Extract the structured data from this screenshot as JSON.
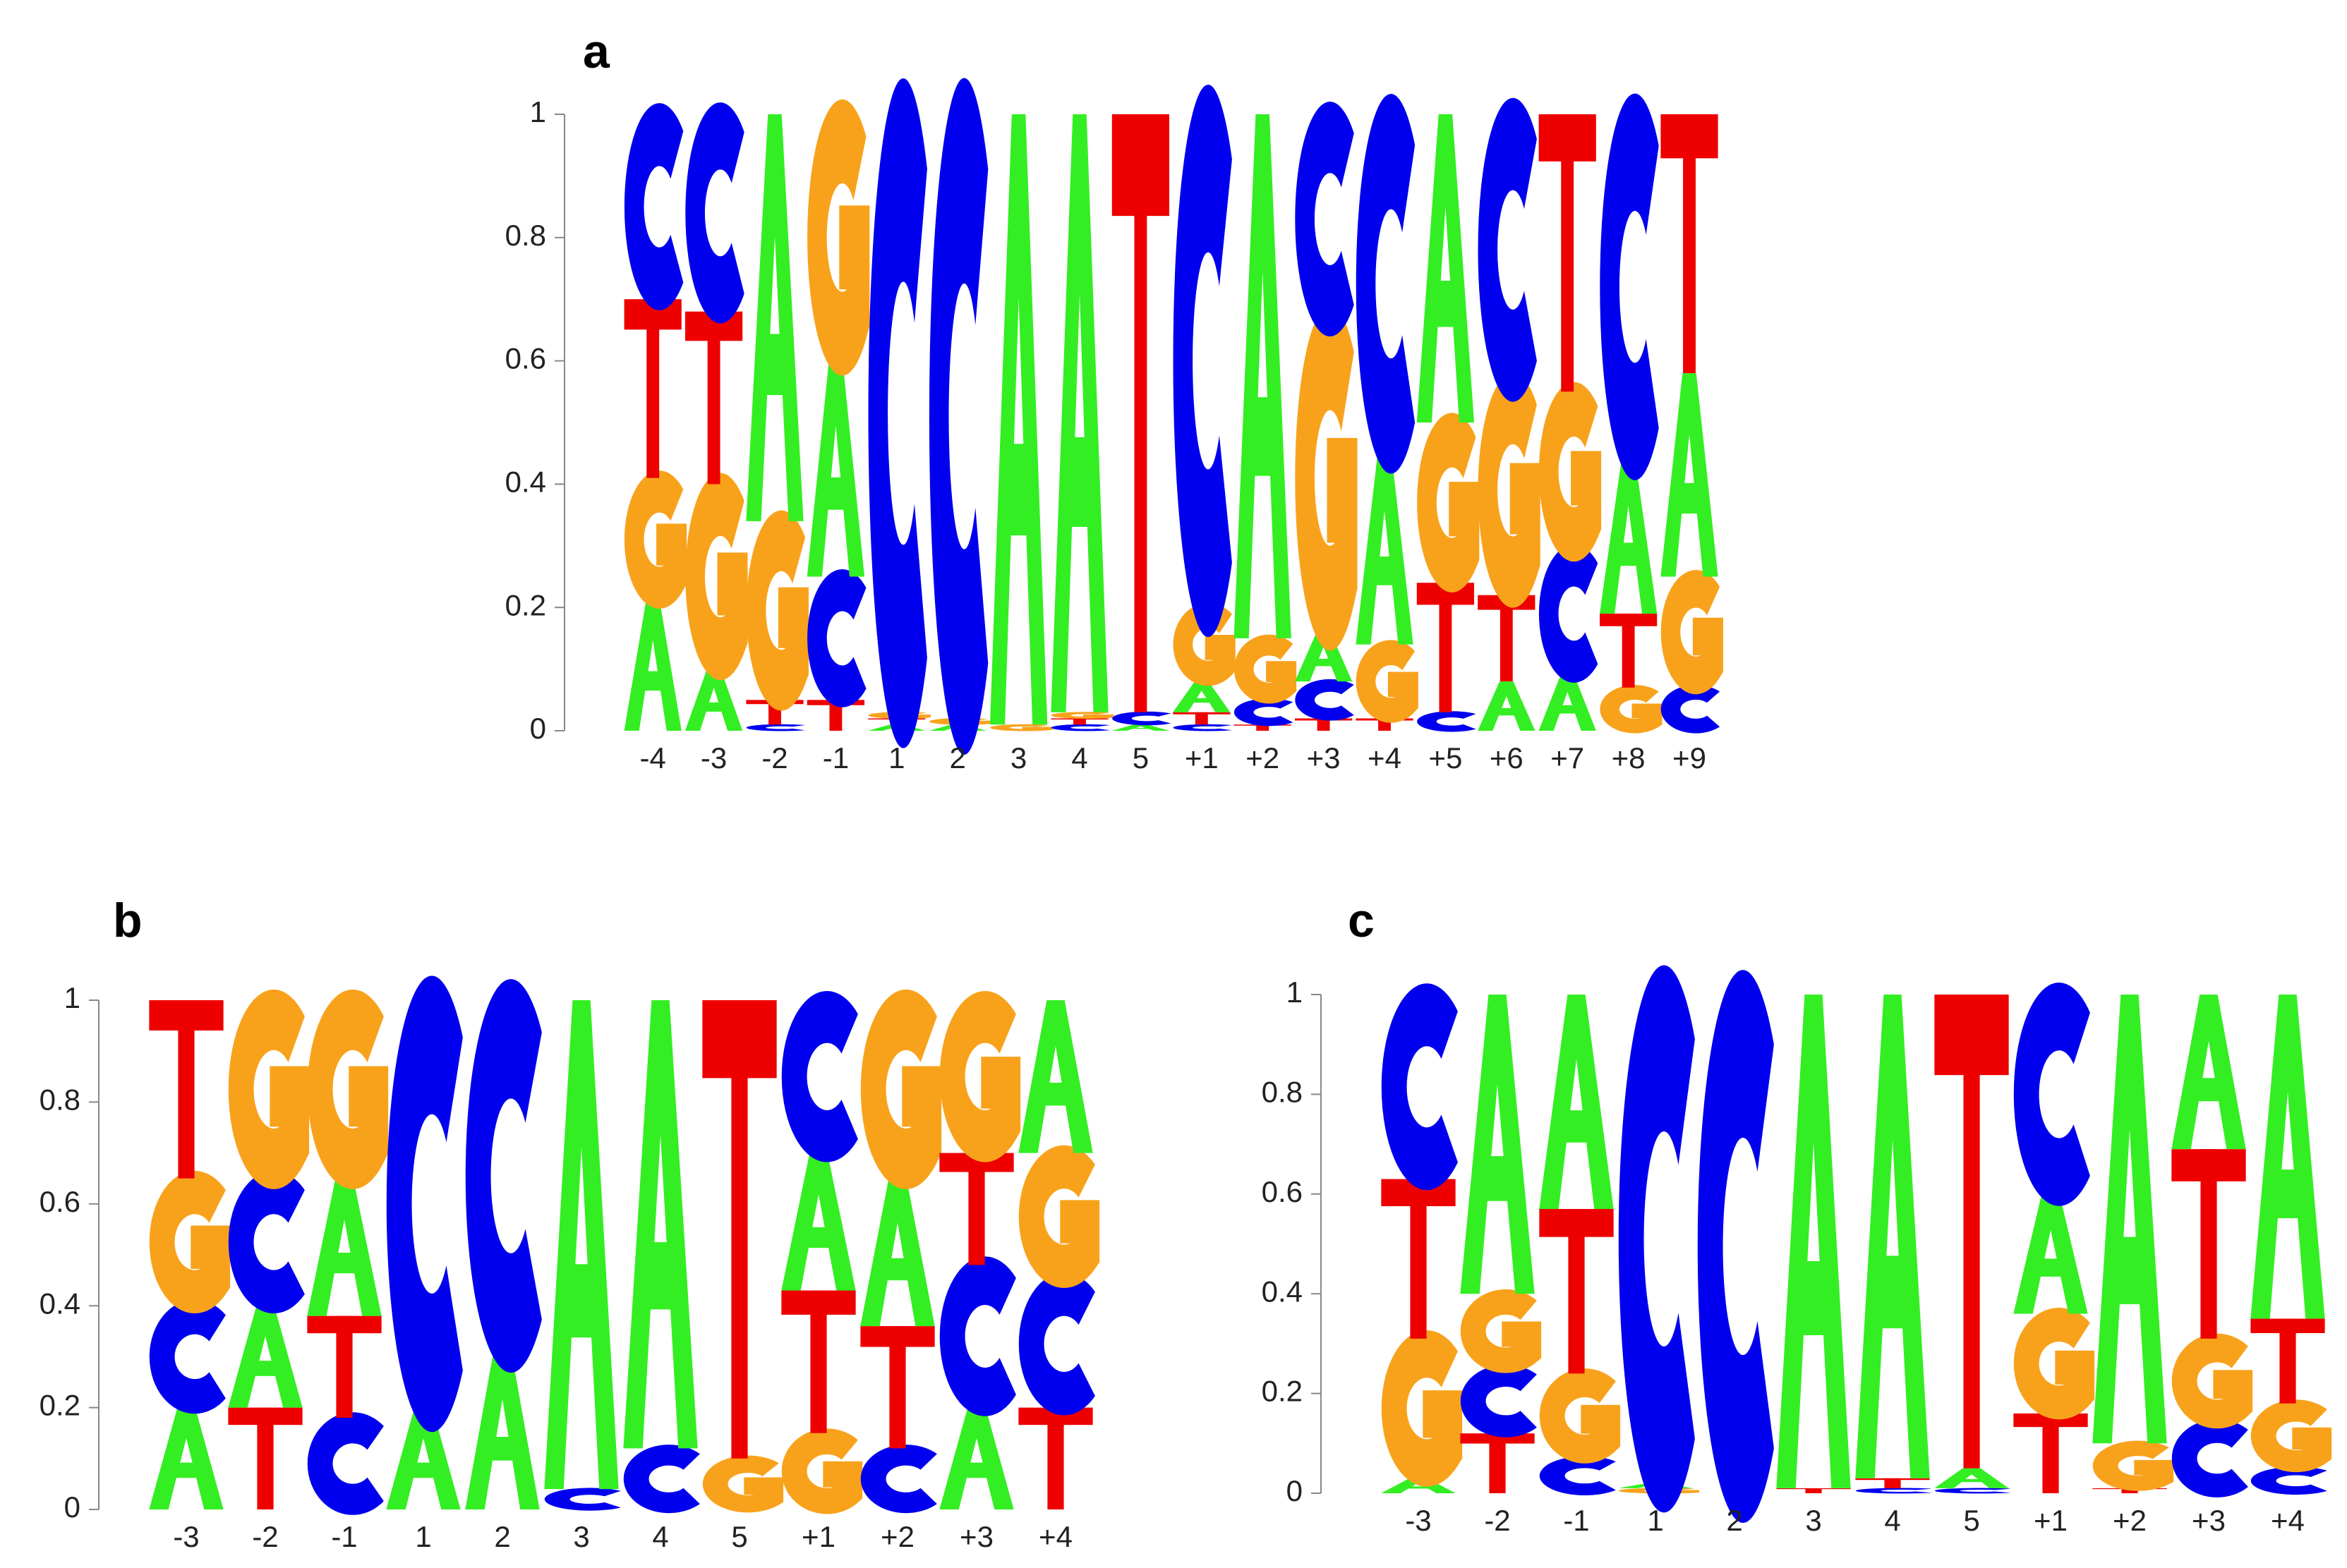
{
  "colors": {
    "A": "#33ee22",
    "C": "#0000ee",
    "G": "#f8a21c",
    "T": "#ee0000"
  },
  "chart_data": [
    {
      "type": "sequence-logo",
      "panel_label": "a",
      "ylim": [
        0,
        1
      ],
      "yticks": [
        "0",
        "0.2",
        "0.4",
        "0.6",
        "0.8",
        "1"
      ],
      "positions": [
        "-4",
        "-3",
        "-2",
        "-1",
        "1",
        "2",
        "3",
        "4",
        "5",
        "+1",
        "+2",
        "+3",
        "+4",
        "+5",
        "+6",
        "+7",
        "+8",
        "+9"
      ],
      "stacks": [
        [
          [
            "A",
            0.21
          ],
          [
            "G",
            0.2
          ],
          [
            "T",
            0.29
          ],
          [
            "C",
            0.3
          ]
        ],
        [
          [
            "A",
            0.1
          ],
          [
            "G",
            0.3
          ],
          [
            "T",
            0.28
          ],
          [
            "C",
            0.32
          ]
        ],
        [
          [
            "C",
            0.01
          ],
          [
            "T",
            0.04
          ],
          [
            "G",
            0.29
          ],
          [
            "A",
            0.66
          ]
        ],
        [
          [
            "T",
            0.05
          ],
          [
            "C",
            0.2
          ],
          [
            "A",
            0.35
          ],
          [
            "G",
            0.4
          ]
        ],
        [
          [
            "A",
            0.01
          ],
          [
            "T",
            0.01
          ],
          [
            "G",
            0.01
          ],
          [
            "C",
            0.97
          ]
        ],
        [
          [
            "A",
            0.01
          ],
          [
            "G",
            0.01
          ],
          [
            "C",
            0.98
          ]
        ],
        [
          [
            "G",
            0.01
          ],
          [
            "A",
            0.99
          ]
        ],
        [
          [
            "C",
            0.01
          ],
          [
            "T",
            0.01
          ],
          [
            "G",
            0.01
          ],
          [
            "A",
            0.97
          ]
        ],
        [
          [
            "A",
            0.01
          ],
          [
            "C",
            0.02
          ],
          [
            "T",
            0.97
          ]
        ],
        [
          [
            "C",
            0.01
          ],
          [
            "T",
            0.02
          ],
          [
            "A",
            0.05
          ],
          [
            "G",
            0.12
          ],
          [
            "C",
            0.8
          ]
        ],
        [
          [
            "T",
            0.01
          ],
          [
            "C",
            0.04
          ],
          [
            "G",
            0.1
          ],
          [
            "A",
            0.85
          ]
        ],
        [
          [
            "T",
            0.02
          ],
          [
            "C",
            0.06
          ],
          [
            "A",
            0.08
          ],
          [
            "G",
            0.5
          ],
          [
            "C",
            0.34
          ]
        ],
        [
          [
            "T",
            0.02
          ],
          [
            "G",
            0.12
          ],
          [
            "A",
            0.31
          ],
          [
            "C",
            0.55
          ]
        ],
        [
          [
            "C",
            0.03
          ],
          [
            "T",
            0.21
          ],
          [
            "G",
            0.26
          ],
          [
            "A",
            0.5
          ]
        ],
        [
          [
            "A",
            0.08
          ],
          [
            "T",
            0.14
          ],
          [
            "G",
            0.34
          ],
          [
            "C",
            0.44
          ]
        ],
        [
          [
            "A",
            0.09
          ],
          [
            "C",
            0.2
          ],
          [
            "G",
            0.26
          ],
          [
            "T",
            0.45
          ]
        ],
        [
          [
            "G",
            0.07
          ],
          [
            "T",
            0.12
          ],
          [
            "A",
            0.25
          ],
          [
            "C",
            0.56
          ]
        ],
        [
          [
            "C",
            0.07
          ],
          [
            "G",
            0.18
          ],
          [
            "A",
            0.33
          ],
          [
            "T",
            0.42
          ]
        ]
      ]
    },
    {
      "type": "sequence-logo",
      "panel_label": "b",
      "ylim": [
        0,
        1
      ],
      "yticks": [
        "0",
        "0.2",
        "0.4",
        "0.6",
        "0.8",
        "1"
      ],
      "positions": [
        "-3",
        "-2",
        "-1",
        "1",
        "2",
        "3",
        "4",
        "5",
        "+1",
        "+2",
        "+3",
        "+4"
      ],
      "stacks": [
        [
          [
            "A",
            0.2
          ],
          [
            "C",
            0.2
          ],
          [
            "G",
            0.25
          ],
          [
            "T",
            0.35
          ]
        ],
        [
          [
            "T",
            0.2
          ],
          [
            "A",
            0.2
          ],
          [
            "C",
            0.25
          ],
          [
            "G",
            0.35
          ]
        ],
        [
          [
            "C",
            0.18
          ],
          [
            "T",
            0.2
          ],
          [
            "A",
            0.27
          ],
          [
            "G",
            0.35
          ]
        ],
        [
          [
            "A",
            0.2
          ],
          [
            "C",
            0.8
          ]
        ],
        [
          [
            "A",
            0.31
          ],
          [
            "C",
            0.69
          ]
        ],
        [
          [
            "C",
            0.04
          ],
          [
            "A",
            0.96
          ]
        ],
        [
          [
            "C",
            0.12
          ],
          [
            "A",
            0.88
          ]
        ],
        [
          [
            "G",
            0.1
          ],
          [
            "T",
            0.9
          ]
        ],
        [
          [
            "G",
            0.15
          ],
          [
            "T",
            0.28
          ],
          [
            "A",
            0.27
          ],
          [
            "C",
            0.3
          ]
        ],
        [
          [
            "C",
            0.12
          ],
          [
            "T",
            0.24
          ],
          [
            "A",
            0.29
          ],
          [
            "G",
            0.35
          ]
        ],
        [
          [
            "A",
            0.2
          ],
          [
            "C",
            0.28
          ],
          [
            "T",
            0.22
          ],
          [
            "G",
            0.3
          ]
        ],
        [
          [
            "T",
            0.2
          ],
          [
            "C",
            0.25
          ],
          [
            "G",
            0.25
          ],
          [
            "A",
            0.3
          ]
        ]
      ]
    },
    {
      "type": "sequence-logo",
      "panel_label": "c",
      "ylim": [
        0,
        1
      ],
      "yticks": [
        "0",
        "0.2",
        "0.4",
        "0.6",
        "0.8",
        "1"
      ],
      "positions": [
        "-3",
        "-2",
        "-1",
        "1",
        "2",
        "3",
        "4",
        "5",
        "+1",
        "+2",
        "+3",
        "+4"
      ],
      "stacks": [
        [
          [
            "A",
            0.03
          ],
          [
            "G",
            0.28
          ],
          [
            "T",
            0.32
          ],
          [
            "C",
            0.37
          ]
        ],
        [
          [
            "T",
            0.12
          ],
          [
            "C",
            0.13
          ],
          [
            "G",
            0.15
          ],
          [
            "A",
            0.6
          ]
        ],
        [
          [
            "C",
            0.07
          ],
          [
            "G",
            0.17
          ],
          [
            "T",
            0.33
          ],
          [
            "A",
            0.43
          ]
        ],
        [
          [
            "G",
            0.01
          ],
          [
            "A",
            0.01
          ],
          [
            "C",
            0.98
          ]
        ],
        [
          [
            "C",
            0.99
          ]
        ],
        [
          [
            "T",
            0.01
          ],
          [
            "A",
            0.99
          ]
        ],
        [
          [
            "C",
            0.01
          ],
          [
            "T",
            0.02
          ],
          [
            "A",
            0.97
          ]
        ],
        [
          [
            "C",
            0.01
          ],
          [
            "A",
            0.04
          ],
          [
            "T",
            0.95
          ]
        ],
        [
          [
            "T",
            0.16
          ],
          [
            "G",
            0.2
          ],
          [
            "A",
            0.24
          ],
          [
            "C",
            0.4
          ]
        ],
        [
          [
            "T",
            0.01
          ],
          [
            "G",
            0.09
          ],
          [
            "A",
            0.9
          ]
        ],
        [
          [
            "C",
            0.14
          ],
          [
            "G",
            0.17
          ],
          [
            "T",
            0.38
          ],
          [
            "A",
            0.31
          ]
        ],
        [
          [
            "C",
            0.05
          ],
          [
            "G",
            0.13
          ],
          [
            "T",
            0.17
          ],
          [
            "A",
            0.65
          ]
        ]
      ]
    }
  ]
}
